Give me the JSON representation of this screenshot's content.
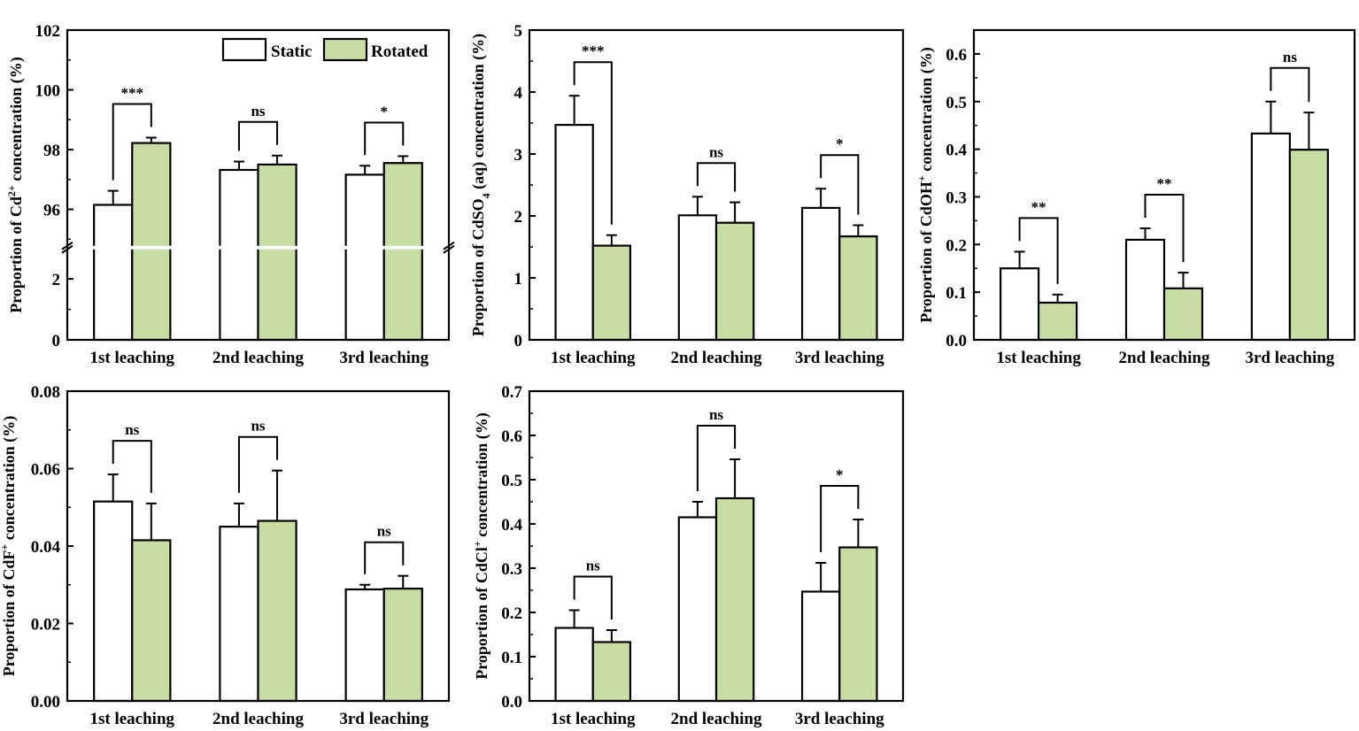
{
  "colors": {
    "static": "#ffffff",
    "rotated": "#c8dda3",
    "stroke": "#000000"
  },
  "legend": {
    "static": "Static",
    "rotated": "Rotated",
    "placement": "top-right"
  },
  "chart_data": [
    {
      "type": "bar",
      "categories": [
        "1st leaching",
        "2nd leaching",
        "3rd leaching"
      ],
      "ylabel_parts": [
        {
          "t": "Proportion of Cd"
        },
        {
          "t": "2+",
          "s": "sup"
        },
        {
          "t": " concentration (%)"
        }
      ],
      "ylim": [
        0,
        102
      ],
      "ybreak": [
        3,
        94.75
      ],
      "yticks": [
        0,
        2,
        96,
        98,
        100,
        102
      ],
      "yminor": [
        1,
        95,
        97,
        99,
        101
      ],
      "legend": true,
      "series": [
        {
          "name": "Static",
          "values": [
            96.15,
            97.32,
            97.16
          ],
          "errors": [
            0.47,
            0.28,
            0.3
          ]
        },
        {
          "name": "Rotated",
          "values": [
            98.22,
            97.5,
            97.55
          ],
          "errors": [
            0.18,
            0.3,
            0.23
          ]
        }
      ],
      "significance": [
        "***",
        "ns",
        "*"
      ]
    },
    {
      "type": "bar",
      "categories": [
        "1st leaching",
        "2nd leaching",
        "3rd leaching"
      ],
      "ylabel_parts": [
        {
          "t": "Proportion of CdSO"
        },
        {
          "t": "4",
          "s": "sub"
        },
        {
          "t": " (aq) concentration (%)"
        }
      ],
      "ylim": [
        0,
        5
      ],
      "yticks": [
        0,
        1,
        2,
        3,
        4,
        5
      ],
      "yminor": [
        0.5,
        1.5,
        2.5,
        3.5,
        4.5
      ],
      "series": [
        {
          "name": "Static",
          "values": [
            3.47,
            2.01,
            2.13
          ],
          "errors": [
            0.47,
            0.3,
            0.31
          ]
        },
        {
          "name": "Rotated",
          "values": [
            1.52,
            1.89,
            1.67
          ],
          "errors": [
            0.17,
            0.33,
            0.18
          ]
        }
      ],
      "significance": [
        "***",
        "ns",
        "*"
      ]
    },
    {
      "type": "bar",
      "categories": [
        "1st leaching",
        "2nd leaching",
        "3rd leaching"
      ],
      "ylabel_parts": [
        {
          "t": "Proportion of CdOH"
        },
        {
          "t": "+",
          "s": "sup"
        },
        {
          "t": " concentration (%)"
        }
      ],
      "ylim": [
        0,
        0.65
      ],
      "yticks": [
        0.0,
        0.1,
        0.2,
        0.3,
        0.4,
        0.5,
        0.6
      ],
      "yminor": [
        0.05,
        0.15,
        0.25,
        0.35,
        0.45,
        0.55
      ],
      "tickdecimals": 1,
      "series": [
        {
          "name": "Static",
          "values": [
            0.15,
            0.21,
            0.433
          ],
          "errors": [
            0.035,
            0.024,
            0.067
          ]
        },
        {
          "name": "Rotated",
          "values": [
            0.078,
            0.108,
            0.399
          ],
          "errors": [
            0.017,
            0.033,
            0.078
          ]
        }
      ],
      "significance": [
        "**",
        "**",
        "ns"
      ]
    },
    {
      "type": "bar",
      "categories": [
        "1st leaching",
        "2nd leaching",
        "3rd leaching"
      ],
      "ylabel_parts": [
        {
          "t": "Proportion of CdF"
        },
        {
          "t": "+",
          "s": "sup"
        },
        {
          "t": " concentration (%)"
        }
      ],
      "ylim": [
        0,
        0.08
      ],
      "yticks": [
        0.0,
        0.02,
        0.04,
        0.06,
        0.08
      ],
      "yminor": [
        0.01,
        0.03,
        0.05,
        0.07
      ],
      "tickdecimals": 2,
      "series": [
        {
          "name": "Static",
          "values": [
            0.0515,
            0.045,
            0.0288
          ],
          "errors": [
            0.007,
            0.006,
            0.0012
          ]
        },
        {
          "name": "Rotated",
          "values": [
            0.0415,
            0.0465,
            0.029
          ],
          "errors": [
            0.0095,
            0.013,
            0.0033
          ]
        }
      ],
      "significance": [
        "ns",
        "ns",
        "ns"
      ]
    },
    {
      "type": "bar",
      "categories": [
        "1st leaching",
        "2nd leaching",
        "3rd leaching"
      ],
      "ylabel_parts": [
        {
          "t": "Proportion of CdCl"
        },
        {
          "t": "+",
          "s": "sup"
        },
        {
          "t": " concentration (%)"
        }
      ],
      "ylim": [
        0,
        0.7
      ],
      "yticks": [
        0.0,
        0.1,
        0.2,
        0.3,
        0.4,
        0.5,
        0.6,
        0.7
      ],
      "yminor": [
        0.05,
        0.15,
        0.25,
        0.35,
        0.45,
        0.55,
        0.65
      ],
      "tickdecimals": 1,
      "series": [
        {
          "name": "Static",
          "values": [
            0.165,
            0.415,
            0.247
          ],
          "errors": [
            0.04,
            0.035,
            0.065
          ]
        },
        {
          "name": "Rotated",
          "values": [
            0.133,
            0.458,
            0.347
          ],
          "errors": [
            0.027,
            0.088,
            0.063
          ]
        }
      ],
      "significance": [
        "ns",
        "ns",
        "*"
      ]
    }
  ]
}
